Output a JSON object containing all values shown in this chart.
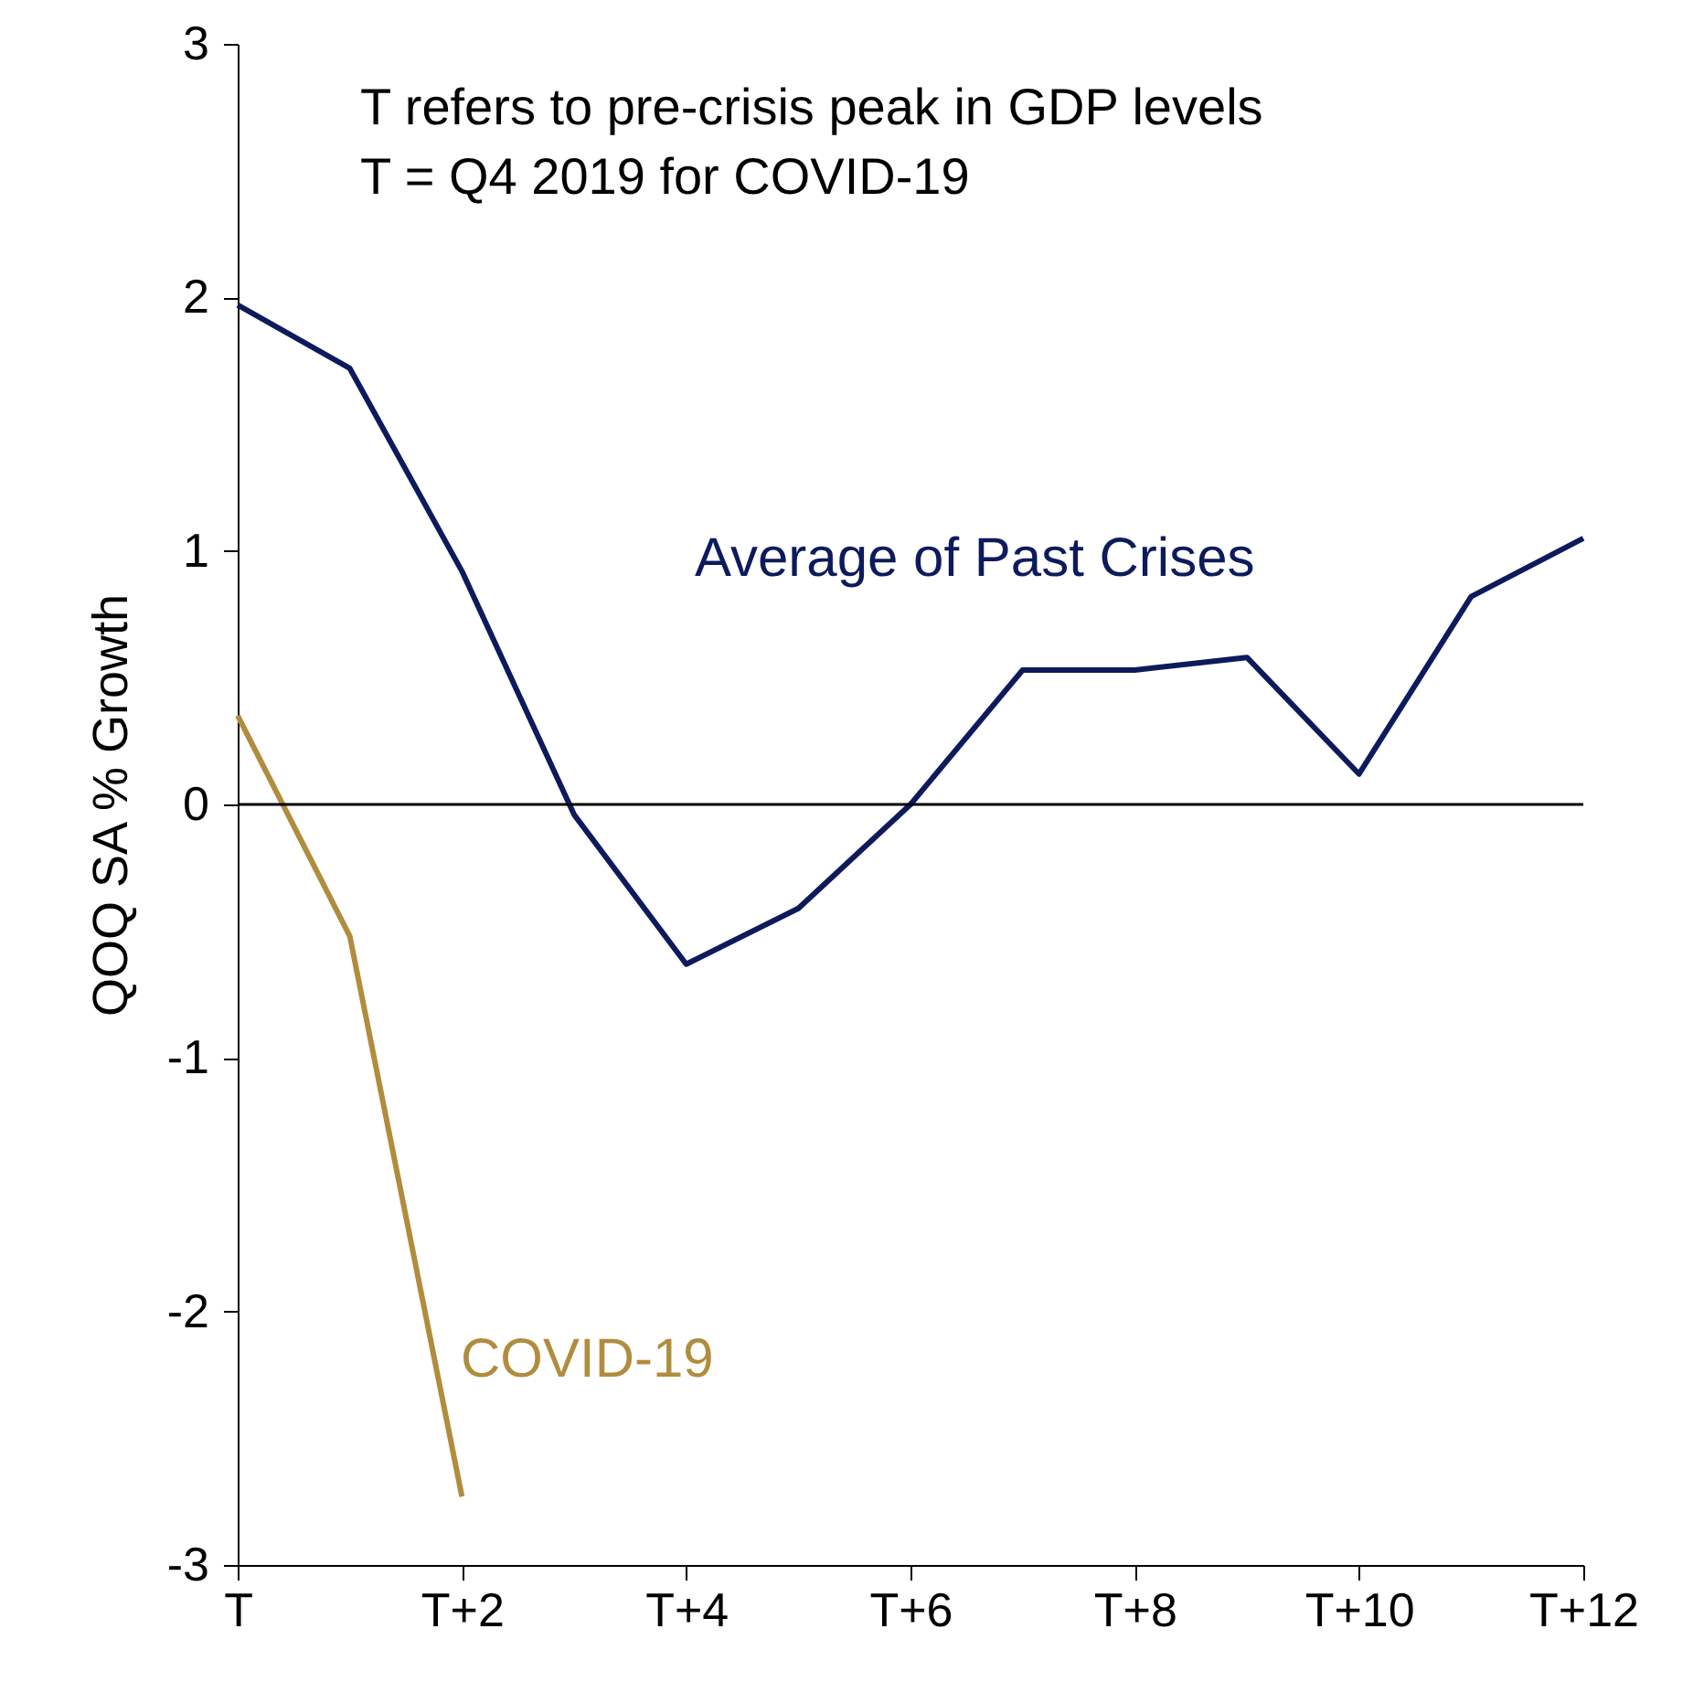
{
  "chart_data": {
    "type": "line",
    "ylabel": "QOQ SA % Growth",
    "annotations": [
      "T refers to pre-crisis peak in GDP levels",
      "T = Q4 2019 for COVID-19"
    ],
    "categories": [
      "T",
      null,
      "T+2",
      null,
      "T+4",
      null,
      "T+6",
      null,
      "T+8",
      null,
      "T+10",
      null,
      "T+12"
    ],
    "series": [
      {
        "name": "Average of Past Crises",
        "color": "#0d1b5c",
        "values": [
          1.97,
          1.72,
          0.92,
          -0.04,
          -0.63,
          -0.41,
          0.0,
          0.53,
          0.53,
          0.58,
          0.12,
          0.82,
          1.05
        ]
      },
      {
        "name": "COVID-19",
        "color": "#b08d3e",
        "values": [
          0.35,
          -0.52,
          -2.73,
          null,
          null,
          null,
          null,
          null,
          null,
          null,
          null,
          null,
          null
        ]
      }
    ],
    "ylim": [
      -3,
      3
    ],
    "yticks": [
      -3,
      -2,
      -1,
      0,
      1,
      2,
      3
    ],
    "ref_lines": [
      {
        "axis": "y",
        "value": 0,
        "color": "#000000"
      }
    ],
    "grid": false,
    "marker": "none",
    "line_style": "solid"
  }
}
